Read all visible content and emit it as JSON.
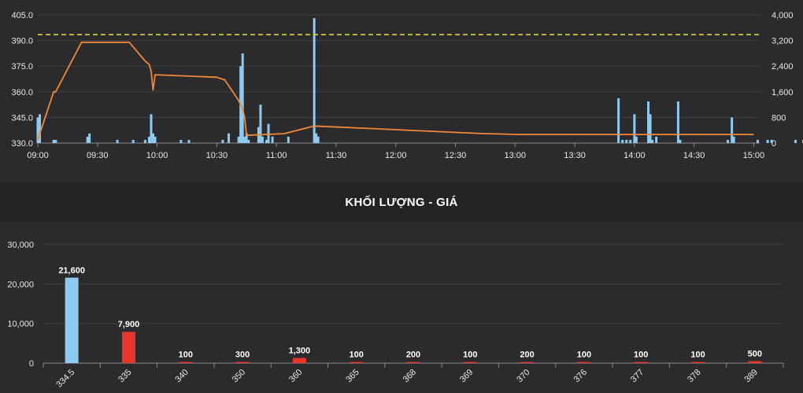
{
  "section_title": "KHỐI LƯỢNG - GIÁ",
  "colors": {
    "price_line": "#f0873a",
    "volume_bar": "#8ec9ef",
    "reference_line": "#e6e23a",
    "bar_up": "#8ec9ef",
    "bar_down": "#e8362c",
    "grid": "#3f3f43",
    "background": "#2b2b2d"
  },
  "chart_data": [
    {
      "type": "line",
      "name": "intraday",
      "y_left_ticks": [
        "405.0",
        "390.0",
        "375.0",
        "360.0",
        "345.0",
        "330.0"
      ],
      "ylim_left": [
        330,
        405
      ],
      "y_right_ticks": [
        "4,000",
        "3,200",
        "2,400",
        "1,600",
        "800",
        "0"
      ],
      "ylim_right": [
        0,
        4000
      ],
      "x_ticks": [
        "09:00",
        "09:30",
        "10:00",
        "10:30",
        "11:00",
        "11:30",
        "12:00",
        "12:30",
        "13:00",
        "13:30",
        "14:00",
        "14:30",
        "15:00"
      ],
      "xlim_minutes": [
        540,
        903
      ],
      "reference_price": 393.5,
      "price_series": {
        "x": [
          540,
          548,
          549,
          562,
          586,
          594,
          596,
          597,
          598,
          599,
          630,
          634,
          641,
          643,
          644,
          645,
          664,
          679,
          764,
          782,
          900
        ],
        "y": [
          332,
          360,
          360,
          389,
          389,
          378,
          376,
          372,
          361,
          370,
          368.5,
          367,
          355,
          350,
          345,
          334.5,
          335.5,
          340,
          335.5,
          335,
          335
        ]
      },
      "volume_series": {
        "x": [
          540,
          541,
          548,
          549,
          565,
          566,
          580,
          588,
          594,
          596,
          597,
          598,
          599,
          612,
          616,
          633,
          636,
          641,
          642,
          643,
          644,
          645,
          646,
          651,
          652,
          653,
          655,
          656,
          658,
          666,
          679,
          680,
          681,
          832,
          834,
          836,
          838,
          840,
          841,
          847,
          848,
          849,
          851,
          862,
          863,
          887,
          889,
          890,
          902,
          907,
          909,
          921,
          925,
          931,
          932,
          957
        ],
        "y": [
          800,
          900,
          100,
          100,
          200,
          300,
          100,
          100,
          100,
          200,
          900,
          300,
          200,
          100,
          100,
          100,
          300,
          200,
          2400,
          2800,
          200,
          300,
          100,
          500,
          1200,
          200,
          100,
          600,
          200,
          200,
          3900,
          300,
          200,
          1400,
          100,
          100,
          100,
          900,
          200,
          1300,
          900,
          100,
          200,
          1300,
          100,
          100,
          800,
          200,
          100,
          100,
          100,
          100,
          100,
          100,
          100,
          1000
        ]
      }
    },
    {
      "type": "bar",
      "name": "volume-by-price",
      "categories": [
        "334.5",
        "335",
        "340",
        "350",
        "360",
        "365",
        "368",
        "369",
        "370",
        "376",
        "377",
        "378",
        "389"
      ],
      "values": [
        21600,
        7900,
        100,
        300,
        1300,
        100,
        200,
        100,
        200,
        100,
        100,
        100,
        500
      ],
      "value_labels": [
        "21,600",
        "7,900",
        "100",
        "300",
        "1,300",
        "100",
        "200",
        "100",
        "200",
        "100",
        "100",
        "100",
        "500"
      ],
      "bar_colors": [
        "#8ec9ef",
        "#e8362c",
        "#e8362c",
        "#e8362c",
        "#e8362c",
        "#e8362c",
        "#e8362c",
        "#e8362c",
        "#e8362c",
        "#e8362c",
        "#e8362c",
        "#e8362c",
        "#e8362c"
      ],
      "y_ticks": [
        "30,000",
        "20,000",
        "10,000",
        "0"
      ],
      "ylim": [
        0,
        30000
      ]
    }
  ]
}
